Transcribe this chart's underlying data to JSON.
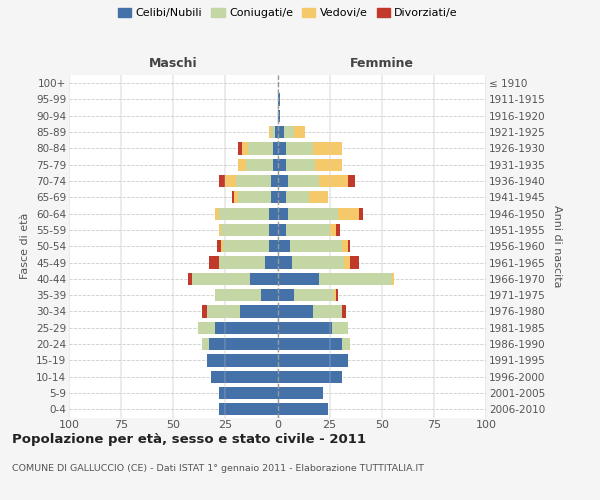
{
  "age_groups": [
    "0-4",
    "5-9",
    "10-14",
    "15-19",
    "20-24",
    "25-29",
    "30-34",
    "35-39",
    "40-44",
    "45-49",
    "50-54",
    "55-59",
    "60-64",
    "65-69",
    "70-74",
    "75-79",
    "80-84",
    "85-89",
    "90-94",
    "95-99",
    "100+"
  ],
  "birth_years": [
    "2006-2010",
    "2001-2005",
    "1996-2000",
    "1991-1995",
    "1986-1990",
    "1981-1985",
    "1976-1980",
    "1971-1975",
    "1966-1970",
    "1961-1965",
    "1956-1960",
    "1951-1955",
    "1946-1950",
    "1941-1945",
    "1936-1940",
    "1931-1935",
    "1926-1930",
    "1921-1925",
    "1916-1920",
    "1911-1915",
    "≤ 1910"
  ],
  "males": {
    "celibe": [
      28,
      28,
      32,
      34,
      33,
      30,
      18,
      8,
      13,
      6,
      4,
      4,
      4,
      3,
      3,
      2,
      2,
      1,
      0,
      0,
      0
    ],
    "coniugato": [
      0,
      0,
      0,
      0,
      3,
      8,
      16,
      22,
      28,
      22,
      22,
      23,
      24,
      16,
      17,
      13,
      12,
      2,
      0,
      0,
      0
    ],
    "vedovo": [
      0,
      0,
      0,
      0,
      0,
      0,
      0,
      0,
      0,
      0,
      1,
      1,
      2,
      2,
      5,
      4,
      3,
      1,
      0,
      0,
      0
    ],
    "divorziato": [
      0,
      0,
      0,
      0,
      0,
      0,
      2,
      0,
      2,
      5,
      2,
      0,
      0,
      1,
      3,
      0,
      2,
      0,
      0,
      0,
      0
    ]
  },
  "females": {
    "nubile": [
      24,
      22,
      31,
      34,
      31,
      26,
      17,
      8,
      20,
      7,
      6,
      4,
      5,
      4,
      5,
      4,
      4,
      3,
      1,
      1,
      0
    ],
    "coniugata": [
      0,
      0,
      0,
      0,
      4,
      8,
      14,
      19,
      35,
      25,
      25,
      21,
      24,
      11,
      15,
      14,
      13,
      5,
      0,
      0,
      0
    ],
    "vedova": [
      0,
      0,
      0,
      0,
      0,
      0,
      0,
      1,
      1,
      3,
      3,
      3,
      10,
      9,
      14,
      13,
      14,
      5,
      0,
      0,
      0
    ],
    "divorziata": [
      0,
      0,
      0,
      0,
      0,
      0,
      2,
      1,
      0,
      4,
      1,
      2,
      2,
      0,
      3,
      0,
      0,
      0,
      0,
      0,
      0
    ]
  },
  "colors": {
    "celibe": "#4472a8",
    "coniugato": "#c5d6a5",
    "vedovo": "#f5c96a",
    "divorziato": "#c0392b"
  },
  "legend_labels": [
    "Celibi/Nubili",
    "Coniugati/e",
    "Vedovi/e",
    "Divorziati/e"
  ],
  "title": "Popolazione per età, sesso e stato civile - 2011",
  "subtitle": "COMUNE DI GALLUCCIO (CE) - Dati ISTAT 1° gennaio 2011 - Elaborazione TUTTITALIA.IT",
  "xlabel_left": "Maschi",
  "xlabel_right": "Femmine",
  "ylabel_left": "Fasce di età",
  "ylabel_right": "Anni di nascita",
  "xlim": 100,
  "background_color": "#f5f5f5",
  "plot_bg": "#ffffff"
}
